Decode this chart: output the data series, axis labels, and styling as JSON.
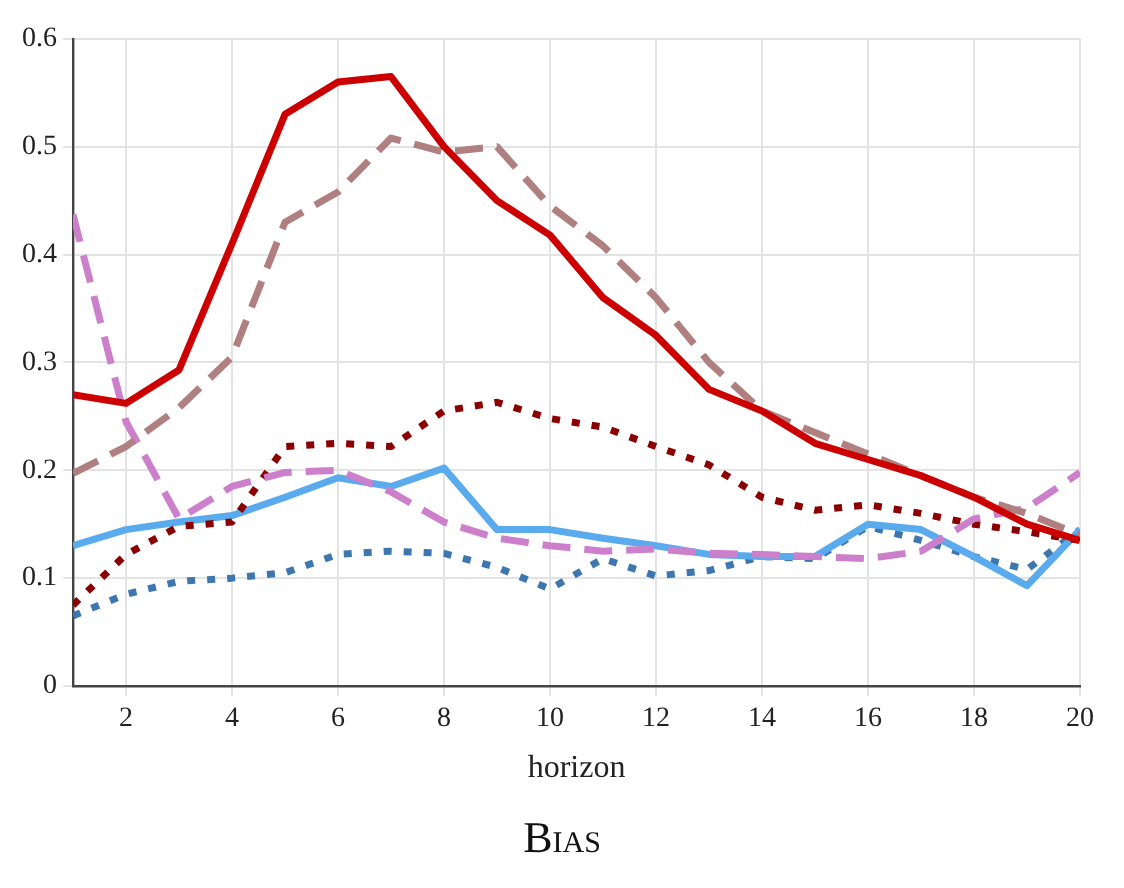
{
  "chart_data": {
    "type": "line",
    "title": "Bias",
    "xlabel": "horizon",
    "x": [
      1,
      2,
      3,
      4,
      5,
      6,
      7,
      8,
      9,
      10,
      11,
      12,
      13,
      14,
      15,
      16,
      17,
      18,
      19,
      20
    ],
    "xlim": [
      1,
      20
    ],
    "xticks": [
      2,
      4,
      6,
      8,
      10,
      12,
      14,
      16,
      18,
      20
    ],
    "ylim": [
      0,
      0.6
    ],
    "yticks": [
      0,
      0.1,
      0.2,
      0.3,
      0.4,
      0.5,
      0.6
    ],
    "grid": true,
    "legend": false,
    "marker": "none",
    "series": [
      {
        "color": "#cc0000",
        "line_style": "solid",
        "values": [
          0.27,
          0.262,
          0.293,
          0.41,
          0.53,
          0.56,
          0.565,
          0.5,
          0.45,
          0.418,
          0.36,
          0.325,
          0.275,
          0.255,
          0.225,
          0.21,
          0.195,
          0.175,
          0.15,
          0.135
        ]
      },
      {
        "color": "#b07f7f",
        "line_style": "dashed",
        "values": [
          0.197,
          0.222,
          0.258,
          0.305,
          0.43,
          0.458,
          0.508,
          0.495,
          0.5,
          0.445,
          0.408,
          0.36,
          0.3,
          0.255,
          0.235,
          0.215,
          0.195,
          0.175,
          0.16,
          0.14
        ]
      },
      {
        "color": "#cc80cc",
        "line_style": "dashed",
        "values": [
          0.437,
          0.245,
          0.155,
          0.185,
          0.198,
          0.2,
          0.18,
          0.152,
          0.137,
          0.13,
          0.125,
          0.127,
          0.123,
          0.122,
          0.12,
          0.118,
          0.125,
          0.155,
          0.165,
          0.198
        ]
      },
      {
        "color": "#8b0000",
        "line_style": "dotted",
        "values": [
          0.075,
          0.122,
          0.148,
          0.152,
          0.222,
          0.225,
          0.222,
          0.255,
          0.263,
          0.248,
          0.24,
          0.222,
          0.205,
          0.175,
          0.163,
          0.168,
          0.16,
          0.15,
          0.143,
          0.135
        ]
      },
      {
        "color": "#5aaaee",
        "line_style": "solid",
        "values": [
          0.13,
          0.145,
          0.152,
          0.158,
          0.175,
          0.193,
          0.185,
          0.202,
          0.145,
          0.145,
          0.137,
          0.13,
          0.122,
          0.12,
          0.12,
          0.15,
          0.145,
          0.12,
          0.093,
          0.145
        ]
      },
      {
        "color": "#3e76b0",
        "line_style": "dotted",
        "values": [
          0.065,
          0.085,
          0.097,
          0.1,
          0.105,
          0.122,
          0.125,
          0.123,
          0.11,
          0.09,
          0.118,
          0.102,
          0.107,
          0.12,
          0.118,
          0.148,
          0.135,
          0.12,
          0.108,
          0.145
        ]
      }
    ]
  }
}
